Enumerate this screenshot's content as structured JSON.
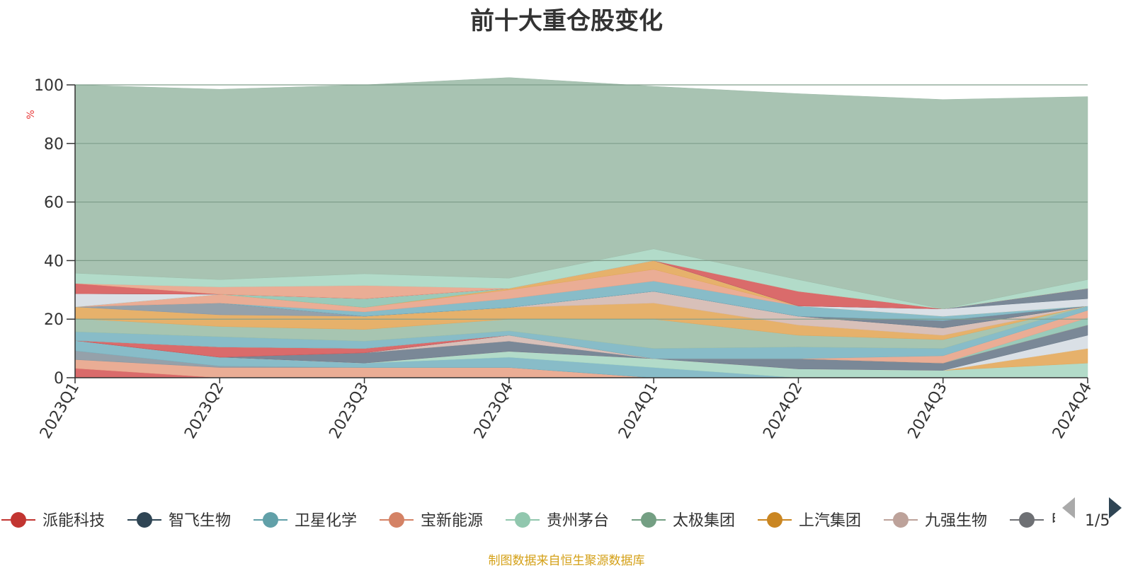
{
  "page": {
    "source_note": "制图数据来自恒生聚源数据库",
    "pager_label": "1/5",
    "colors": {
      "unit": "#e83a3a",
      "source_note": "#d4a017",
      "background_area": "#9fbcaa",
      "axis": "#333333",
      "pager_active": "#2f4554",
      "pager_inactive": "#aaaaaa"
    }
  },
  "chart_data": {
    "type": "area",
    "stacked": true,
    "title": "前十大重仓股变化",
    "ylabel": "%",
    "ylim": [
      0,
      100
    ],
    "yticks": [
      0,
      20,
      40,
      60,
      80,
      100
    ],
    "grid": true,
    "legend_position": "bottom",
    "categories": [
      "2023Q1",
      "2023Q2",
      "2023Q3",
      "2023Q4",
      "2024Q1",
      "2024Q2",
      "2024Q3",
      "2024Q4"
    ],
    "series": [
      {
        "name": "派能科技",
        "color": "#d65b5b",
        "values": [
          3.2,
          0,
          0,
          0,
          0,
          0,
          0,
          0
        ]
      },
      {
        "name": "",
        "color": "#e8a48a",
        "values": [
          3.0,
          3.5,
          3.5,
          3.5,
          0,
          0,
          0,
          0
        ]
      },
      {
        "name": "",
        "color": "#8a97a1",
        "values": [
          3.0,
          0.5,
          0,
          0,
          0,
          0,
          0,
          0
        ]
      },
      {
        "name": "卫星化学",
        "color": "#7bb5c2",
        "values": [
          3.5,
          3.0,
          1.5,
          3.5,
          3.5,
          0,
          0,
          0
        ]
      },
      {
        "name": "贵州茅台",
        "color": "#aad7c3",
        "values": [
          0,
          0,
          0,
          2.0,
          3.0,
          3.0,
          2.5,
          5.0
        ]
      },
      {
        "name": "上汽集团",
        "color": "#e3a85b",
        "values": [
          0,
          0,
          0,
          0,
          0,
          0,
          0,
          5.0
        ]
      },
      {
        "name": "",
        "color": "#d6dde3",
        "values": [
          0,
          0,
          0,
          0,
          0,
          0,
          0,
          4.5
        ]
      },
      {
        "name": "",
        "color": "#6b7b8c",
        "values": [
          0,
          0,
          3.5,
          3.5,
          0,
          3.5,
          2.5,
          3.5
        ]
      },
      {
        "name": "九强生物",
        "color": "#d4b9b1",
        "values": [
          0,
          0,
          0,
          2.0,
          0,
          0,
          0,
          0
        ]
      },
      {
        "name": "智飞生物",
        "color": "#6b7b8c",
        "values": [
          0,
          0,
          0,
          0,
          0,
          0,
          0,
          0
        ]
      },
      {
        "name": "",
        "color": "#d65b5b",
        "values": [
          0,
          3.5,
          1.5,
          0,
          0,
          0,
          0,
          0
        ]
      },
      {
        "name": "",
        "color": "#8fc4b3",
        "values": [
          0,
          0,
          0,
          0,
          0,
          0,
          0,
          2.5
        ]
      },
      {
        "name": "宝新能源",
        "color": "#e8a48a",
        "values": [
          0,
          0,
          0,
          0,
          0,
          0,
          2.5,
          2.5
        ]
      },
      {
        "name": "",
        "color": "#7bb5c2",
        "values": [
          3.0,
          3.5,
          2.5,
          1.5,
          3.5,
          4.0,
          2.5,
          1.5
        ]
      },
      {
        "name": "太极集团",
        "color": "#9dbfa9",
        "values": [
          4.5,
          3.5,
          4.0,
          4.0,
          10.0,
          4.0,
          3.0,
          0
        ]
      },
      {
        "name": "",
        "color": "#e3a85b",
        "values": [
          4.0,
          4.0,
          4.5,
          4.0,
          5.5,
          3.5,
          1.5,
          0
        ]
      },
      {
        "name": "",
        "color": "#d4b9b1",
        "values": [
          0,
          0,
          0,
          0,
          4.0,
          3.0,
          2.5,
          0
        ]
      },
      {
        "name": "",
        "color": "#8a97a1",
        "values": [
          0,
          4.0,
          0,
          0,
          0,
          0,
          0,
          0
        ]
      },
      {
        "name": "",
        "color": "#6b7b8c",
        "values": [
          0,
          0,
          0,
          0,
          0,
          0,
          2.5,
          0
        ]
      },
      {
        "name": "",
        "color": "#7bb5c2",
        "values": [
          0,
          0,
          1.5,
          3.0,
          3.5,
          3.5,
          1.5,
          0
        ]
      },
      {
        "name": "",
        "color": "#e8a48a",
        "values": [
          0,
          3.0,
          1.5,
          3.0,
          4.0,
          0,
          0,
          0
        ]
      },
      {
        "name": "",
        "color": "#e3a85b",
        "values": [
          0,
          0,
          0,
          0.5,
          3.0,
          0,
          0,
          0
        ]
      },
      {
        "name": "",
        "color": "#8fc4b3",
        "values": [
          0,
          0,
          3.0,
          0,
          0,
          0,
          0,
          0
        ]
      },
      {
        "name": "",
        "color": "#d6dde3",
        "values": [
          4.5,
          0,
          0,
          0,
          0,
          0,
          2.5,
          2.5
        ]
      },
      {
        "name": "",
        "color": "#6b7b8c",
        "values": [
          0,
          0,
          0,
          0,
          0,
          0,
          0,
          3.5
        ]
      },
      {
        "name": "",
        "color": "#d65b5b",
        "values": [
          3.5,
          0,
          0,
          0,
          0,
          5.0,
          0,
          0
        ]
      },
      {
        "name": "",
        "color": "#e8a48a",
        "values": [
          0,
          2.5,
          4.5,
          0,
          0,
          0,
          0,
          0
        ]
      },
      {
        "name": "",
        "color": "#aad7c3",
        "values": [
          3.5,
          2.5,
          4.0,
          3.5,
          4.0,
          4.0,
          0,
          3.0
        ]
      },
      {
        "name": "",
        "color": "#9fbcaa",
        "values": [
          64.3,
          65.0,
          64.5,
          68.5,
          55.5,
          63.5,
          71.5,
          62.5
        ]
      }
    ],
    "legend": [
      {
        "name": "派能科技",
        "color": "#c23531"
      },
      {
        "name": "智飞生物",
        "color": "#2f4554"
      },
      {
        "name": "卫星化学",
        "color": "#61a0a8"
      },
      {
        "name": "宝新能源",
        "color": "#d48265"
      },
      {
        "name": "贵州茅台",
        "color": "#91c7ae"
      },
      {
        "name": "太极集团",
        "color": "#749f83"
      },
      {
        "name": "上汽集团",
        "color": "#ca8622"
      },
      {
        "name": "九强生物",
        "color": "#bda29a"
      },
      {
        "name": "",
        "color": "#6e7074"
      }
    ],
    "legend_partial_text": "甲"
  }
}
